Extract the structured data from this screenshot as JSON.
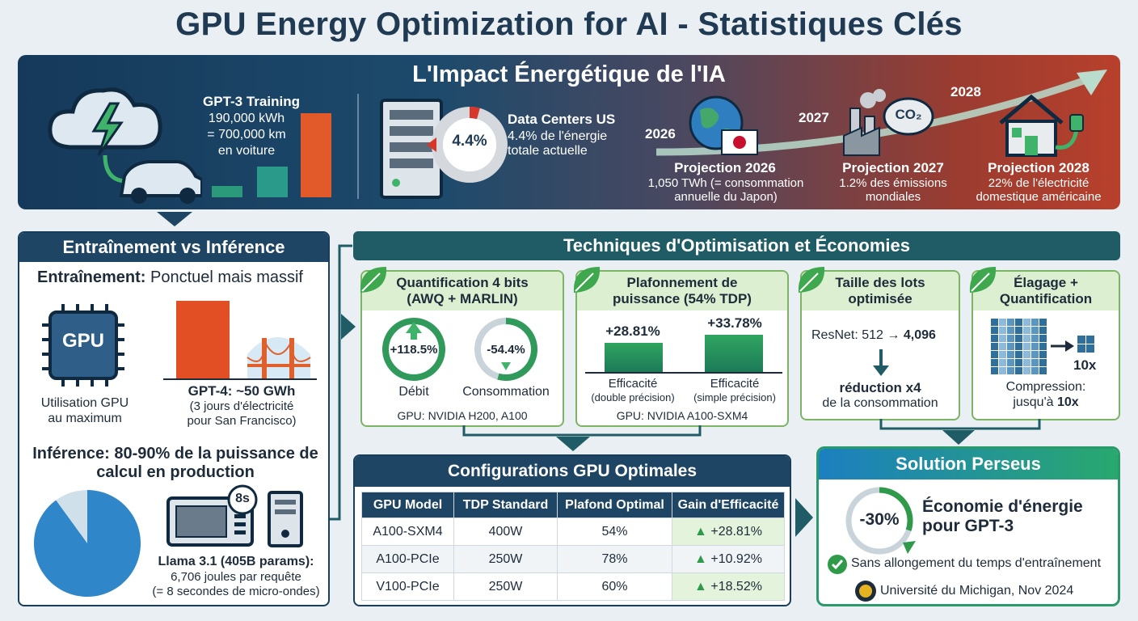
{
  "title": "GPU Energy Optimization for AI - Statistiques Clés",
  "banner": {
    "title": "L'Impact Énergétique de l'IA",
    "gpt3": {
      "title": "GPT-3 Training",
      "line1": "190,000 kWh",
      "line2": "= 700,000 km",
      "line3": "en voiture"
    },
    "datacenters": {
      "percent": "4.4%",
      "percent_value": 4.4,
      "title": "Data Centers US",
      "line1": "4.4% de l'énergie",
      "line2": "totale actuelle"
    },
    "years": [
      "2026",
      "2027",
      "2028"
    ],
    "co2": "CO₂",
    "projections": [
      {
        "title": "Projection 2026",
        "line1": "1,050 TWh (= consommation",
        "line2": "annuelle du Japon)"
      },
      {
        "title": "Projection 2027",
        "line1": "1.2% des émissions",
        "line2": "mondiales"
      },
      {
        "title": "Projection 2028",
        "line1": "22% de l'électricité",
        "line2": "domestique américaine"
      }
    ]
  },
  "left": {
    "title": "Entraînement vs Inférence",
    "training_label": "Entraînement:",
    "training_text": "Ponctuel mais massif",
    "gpu_chip": "GPU",
    "gpu_caption1": "Utilisation GPU",
    "gpu_caption2": "au maximum",
    "gpt4_title": "GPT-4: ~50 GWh",
    "gpt4_line1": "(3 jours d'électricité",
    "gpt4_line2": "pour San Francisco)",
    "inference_line1": "Inférence: 80-90% de la puissance de",
    "inference_line2": "calcul en production",
    "inference_pie_percent": 90,
    "timer": "8s",
    "llama_title": "Llama 3.1 (405B params):",
    "llama_line1": "6,706 joules par requête",
    "llama_line2": "(= 8 secondes de micro-ondes)"
  },
  "techniques": {
    "title": "Techniques d'Optimisation et Économies",
    "quant": {
      "title1": "Quantification 4 bits",
      "title2": "(AWQ + MARLIN)",
      "gain": "+118.5%",
      "gain_label": "Débit",
      "loss": "-54.4%",
      "loss_value": 54.4,
      "loss_label": "Consommation",
      "gpu": "GPU: NVIDIA H200, A100"
    },
    "power": {
      "title1": "Plafonnement de",
      "title2": "puissance (54% TDP)",
      "val1": "+28.81%",
      "val2": "+33.78%",
      "label1": "Efficacité",
      "sub1": "(double précision)",
      "label2": "Efficacité",
      "sub2": "(simple précision)",
      "gpu": "GPU: NVIDIA A100-SXM4"
    },
    "batch": {
      "title1": "Taille des lots",
      "title2": "optimisée",
      "from": "ResNet: 512",
      "to": "4,096",
      "result1": "réduction x4",
      "result2": "de la consommation"
    },
    "prune": {
      "title1": "Élagage +",
      "title2": "Quantification",
      "factor": "10x",
      "line1": "Compression:",
      "line2_pre": "jusqu'à",
      "line2_val": "10x"
    }
  },
  "config": {
    "title": "Configurations GPU Optimales",
    "headers": [
      "GPU Model",
      "TDP Standard",
      "Plafond Optimal",
      "Gain d'Efficacité"
    ],
    "rows": [
      [
        "A100-SXM4",
        "400W",
        "54%",
        "+28.81%"
      ],
      [
        "A100-PCIe",
        "250W",
        "78%",
        "+10.92%"
      ],
      [
        "V100-PCIe",
        "250W",
        "60%",
        "+18.52%"
      ]
    ]
  },
  "perseus": {
    "title": "Solution Perseus",
    "percent": "-30%",
    "percent_value": 30,
    "line1": "Économie d'énergie",
    "line2": "pour GPT-3",
    "check_text": "Sans allongement du temps d'entraînement",
    "source": "Université du Michigan, Nov 2024"
  }
}
